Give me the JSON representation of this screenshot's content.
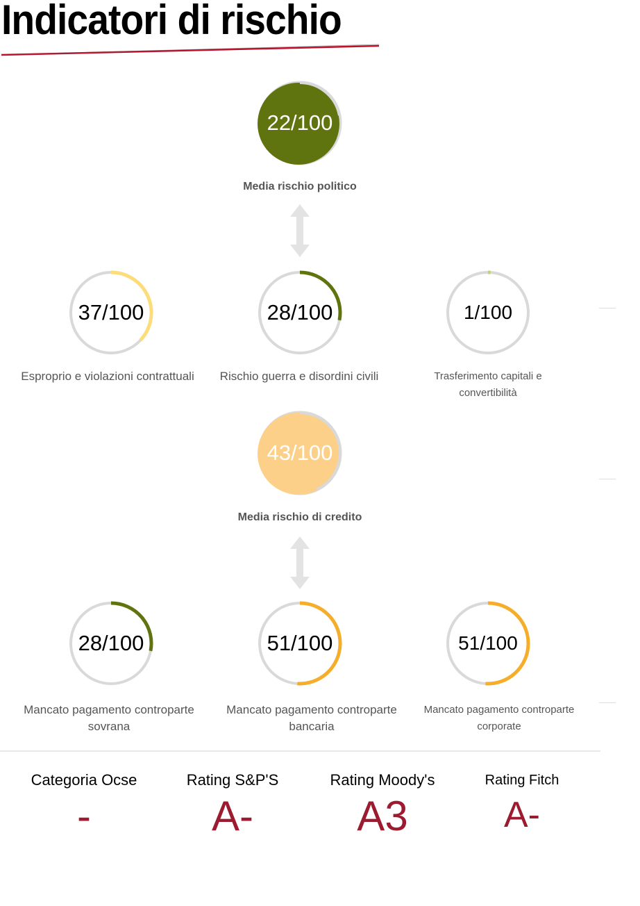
{
  "title": "Indicatori di rischio",
  "colors": {
    "olive": "#5f740f",
    "yellow": "#fddc7a",
    "orange": "#f5ad2a",
    "peach": "#fdd08a",
    "track": "#d9d9d9",
    "rating": "#9b1b30",
    "accent_line": "#c0102a"
  },
  "political": {
    "average": {
      "value": 22,
      "display": "22/100",
      "label": "Media rischio politico",
      "color": "#5f740f"
    },
    "items": [
      {
        "value": 37,
        "display": "37/100",
        "label": "Esproprio e violazioni contrattuali",
        "color": "#fddc7a"
      },
      {
        "value": 28,
        "display": "28/100",
        "label": "Rischio guerra e disordini civili",
        "color": "#5f740f"
      },
      {
        "value": 1,
        "display": "1/100",
        "label": "Trasferimento capitali e convertibilità",
        "color": "#c5d36a"
      }
    ]
  },
  "credit": {
    "average": {
      "value": 43,
      "display": "43/100",
      "label": "Media rischio di credito",
      "color": "#fdd08a"
    },
    "items": [
      {
        "value": 28,
        "display": "28/100",
        "label": "Mancato pagamento controparte sovrana",
        "color": "#5f740f"
      },
      {
        "value": 51,
        "display": "51/100",
        "label": "Mancato pagamento controparte bancaria",
        "color": "#f5ad2a"
      },
      {
        "value": 51,
        "display": "51/100",
        "label": "Mancato pagamento controparte corporate",
        "color": "#f5ad2a"
      }
    ]
  },
  "ratings": [
    {
      "label": "Categoria Ocse",
      "value": "-"
    },
    {
      "label": "Rating S&P'S",
      "value": "A-"
    },
    {
      "label": "Rating Moody's",
      "value": "A3"
    },
    {
      "label": "Rating Fitch",
      "value": "A-"
    }
  ]
}
